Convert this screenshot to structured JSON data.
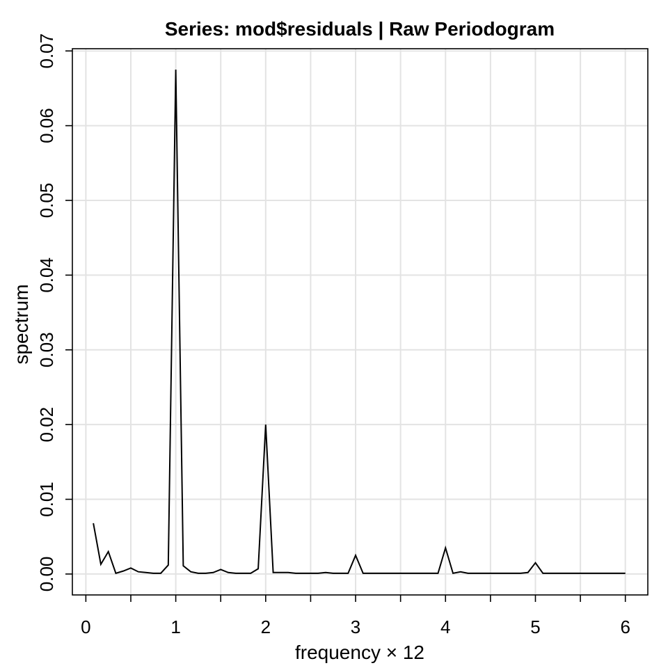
{
  "chart_data": {
    "type": "line",
    "title": "Series: mod$residuals  |  Raw Periodogram",
    "xlabel": "frequency × 12",
    "ylabel": "spectrum",
    "xlim": [
      -0.15,
      6.25
    ],
    "ylim": [
      -0.0028,
      0.0703
    ],
    "x_ticks": [
      0,
      1,
      2,
      3,
      4,
      5,
      6
    ],
    "x_minor_ticks": [
      0.5,
      1.5,
      2.5,
      3.5,
      4.5,
      5.5
    ],
    "y_ticks": [
      0.0,
      0.01,
      0.02,
      0.03,
      0.04,
      0.05,
      0.06,
      0.07
    ],
    "x_tick_labels": [
      "0",
      "1",
      "2",
      "3",
      "4",
      "5",
      "6"
    ],
    "y_tick_labels": [
      "0.00",
      "0.01",
      "0.02",
      "0.03",
      "0.04",
      "0.05",
      "0.06",
      "0.07"
    ],
    "grid": true,
    "series": [
      {
        "x": [
          0.0833,
          0.1667,
          0.25,
          0.3333,
          0.4167,
          0.5,
          0.5833,
          0.6667,
          0.75,
          0.8333,
          0.9167,
          1.0,
          1.0833,
          1.1667,
          1.25,
          1.3333,
          1.4167,
          1.5,
          1.5833,
          1.6667,
          1.75,
          1.8333,
          1.9167,
          2.0,
          2.0833,
          2.1667,
          2.25,
          2.3333,
          2.4167,
          2.5,
          2.5833,
          2.6667,
          2.75,
          2.8333,
          2.9167,
          3.0,
          3.0833,
          3.1667,
          3.25,
          3.3333,
          3.4167,
          3.5,
          3.5833,
          3.6667,
          3.75,
          3.8333,
          3.9167,
          4.0,
          4.0833,
          4.1667,
          4.25,
          4.3333,
          4.4167,
          4.5,
          4.5833,
          4.6667,
          4.75,
          4.8333,
          4.9167,
          5.0,
          5.0833,
          5.1667,
          5.25,
          5.3333,
          5.4167,
          5.5,
          5.5833,
          5.6667,
          5.75,
          5.8333,
          5.9167,
          6.0
        ],
        "values": [
          0.0068,
          0.0013,
          0.003,
          0.0001,
          0.0004,
          0.0008,
          0.0003,
          0.0002,
          0.0001,
          0.0001,
          0.0012,
          0.0675,
          0.0011,
          0.0003,
          0.0001,
          0.0001,
          0.0002,
          0.0006,
          0.0002,
          0.0001,
          0.0001,
          0.0001,
          0.0007,
          0.02,
          0.0002,
          0.0002,
          0.0002,
          0.0001,
          0.0001,
          0.0001,
          0.0001,
          0.0002,
          0.0001,
          0.0001,
          0.0001,
          0.0025,
          0.0001,
          0.0001,
          0.0001,
          0.0001,
          0.0001,
          0.0001,
          0.0001,
          0.0001,
          0.0001,
          0.0001,
          0.0001,
          0.0035,
          0.0001,
          0.0003,
          0.0001,
          0.0001,
          0.0001,
          0.0001,
          0.0001,
          0.0001,
          0.0001,
          0.0001,
          0.0002,
          0.0015,
          0.0001,
          0.0001,
          0.0001,
          0.0001,
          0.0001,
          0.0001,
          0.0001,
          0.0001,
          0.0001,
          0.0001,
          0.0001,
          0.0001
        ]
      }
    ]
  }
}
